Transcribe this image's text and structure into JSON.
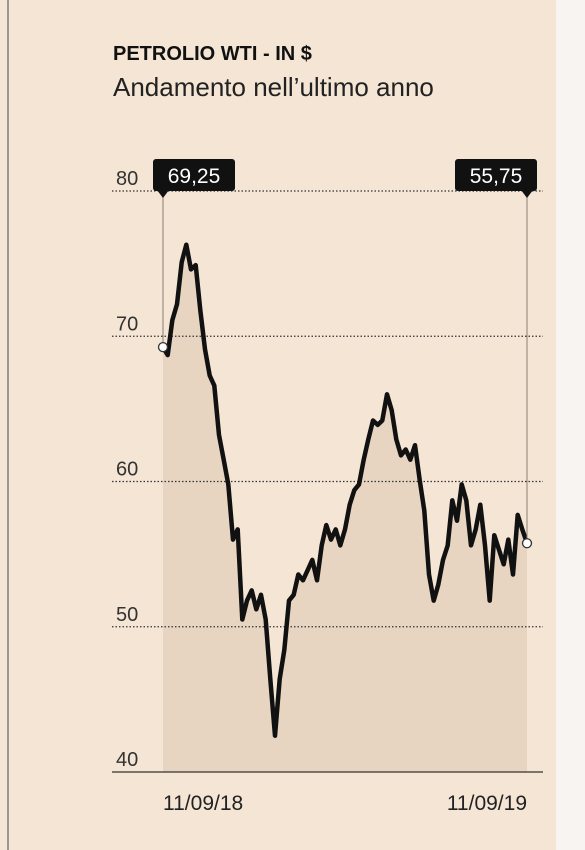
{
  "chart_data": {
    "type": "line",
    "title": "PETROLIO WTI - IN $",
    "subtitle": "Andamento nell’ultimo anno",
    "categories": [
      "11/09/18",
      null,
      null,
      null,
      null,
      null,
      null,
      null,
      null,
      null,
      null,
      null,
      null,
      null,
      null,
      null,
      null,
      null,
      null,
      null,
      null,
      null,
      null,
      null,
      null,
      null,
      null,
      null,
      null,
      null,
      null,
      null,
      null,
      null,
      null,
      null,
      null,
      null,
      null,
      null,
      null,
      null,
      null,
      null,
      null,
      null,
      null,
      null,
      null,
      null,
      null,
      null,
      null,
      null,
      null,
      null,
      null,
      null,
      null,
      null,
      null,
      null,
      null,
      null,
      null,
      null,
      null,
      null,
      null,
      null,
      null,
      null,
      null,
      null,
      null,
      null,
      null,
      null,
      "11/09/19"
    ],
    "series": [
      {
        "name": "WTI",
        "color": "#111111",
        "values": [
          69.25,
          68.7,
          71.1,
          72.2,
          75.1,
          76.3,
          74.6,
          74.9,
          71.8,
          69.1,
          67.3,
          66.6,
          63.2,
          61.5,
          59.8,
          56.0,
          56.7,
          50.5,
          51.8,
          52.5,
          51.2,
          52.2,
          50.5,
          46.4,
          42.5,
          46.4,
          48.4,
          51.8,
          52.2,
          53.6,
          53.2,
          53.9,
          54.6,
          53.2,
          55.6,
          57.0,
          56.0,
          56.7,
          55.6,
          56.7,
          58.4,
          59.4,
          59.8,
          61.5,
          62.9,
          64.2,
          63.9,
          64.2,
          66.0,
          64.9,
          62.9,
          61.8,
          62.2,
          61.5,
          62.5,
          60.1,
          58.0,
          53.6,
          51.8,
          52.9,
          54.6,
          55.6,
          58.7,
          57.3,
          59.8,
          58.7,
          55.6,
          56.7,
          58.4,
          55.6,
          51.8,
          56.3,
          55.3,
          54.3,
          56.0,
          53.6,
          57.7,
          56.7,
          55.75
        ],
        "value_labels": [
          "69,25",
          null,
          null,
          null,
          null,
          null,
          null,
          null,
          null,
          null,
          null,
          null,
          null,
          null,
          null,
          null,
          null,
          null,
          null,
          null,
          null,
          null,
          null,
          null,
          null,
          null,
          null,
          null,
          null,
          null,
          null,
          null,
          null,
          null,
          null,
          null,
          null,
          null,
          null,
          null,
          null,
          null,
          null,
          null,
          null,
          null,
          null,
          null,
          null,
          null,
          null,
          null,
          null,
          null,
          null,
          null,
          null,
          null,
          null,
          null,
          null,
          null,
          null,
          null,
          null,
          null,
          null,
          null,
          null,
          null,
          null,
          null,
          null,
          null,
          null,
          null,
          null,
          null,
          "55,75"
        ],
        "fill": "#e7d4c1"
      }
    ],
    "ylim": [
      40,
      80
    ],
    "yticks": [
      40,
      50,
      60,
      70,
      80
    ],
    "grid": true
  }
}
